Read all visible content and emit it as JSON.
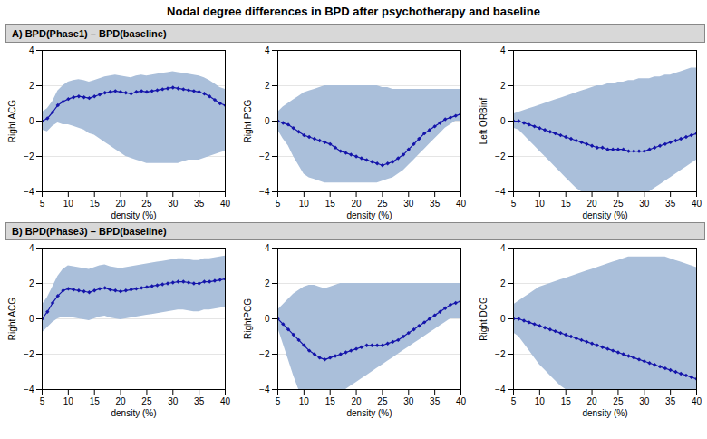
{
  "chart_data": [
    {
      "type": "line",
      "title": "Nodal degree differences in BPD after psychotherapy and baseline",
      "subtitle": "A)  BPD(Phase1) – BPD(baseline)",
      "xlabel": "density (%)",
      "ylabel": "Right ACG",
      "xlim": [
        5,
        40
      ],
      "ylim": [
        -4,
        4
      ],
      "xticks": [
        5,
        10,
        15,
        20,
        25,
        30,
        35,
        40
      ],
      "yticks": [
        -4,
        -2,
        0,
        2,
        4
      ],
      "grid": "y",
      "x": [
        5,
        6,
        7,
        8,
        9,
        10,
        11,
        12,
        13,
        14,
        15,
        16,
        17,
        18,
        19,
        20,
        21,
        22,
        23,
        24,
        25,
        26,
        27,
        28,
        29,
        30,
        31,
        32,
        33,
        34,
        35,
        36,
        37,
        38,
        39,
        40
      ],
      "series": [
        {
          "type": "area",
          "color": "#aabfda",
          "upper": [
            0.5,
            0.7,
            1.1,
            1.7,
            2.0,
            2.2,
            2.3,
            2.35,
            2.3,
            2.2,
            2.3,
            2.4,
            2.5,
            2.55,
            2.6,
            2.55,
            2.5,
            2.45,
            2.55,
            2.6,
            2.55,
            2.6,
            2.65,
            2.7,
            2.75,
            2.8,
            2.75,
            2.7,
            2.65,
            2.6,
            2.55,
            2.45,
            2.3,
            2.1,
            1.9,
            1.8
          ],
          "lower": [
            -0.5,
            -0.6,
            -0.3,
            -0.1,
            -0.2,
            -0.2,
            -0.3,
            -0.4,
            -0.5,
            -0.7,
            -0.8,
            -1.0,
            -1.2,
            -1.4,
            -1.6,
            -1.8,
            -2.0,
            -2.1,
            -2.2,
            -2.3,
            -2.4,
            -2.4,
            -2.4,
            -2.4,
            -2.4,
            -2.4,
            -2.4,
            -2.3,
            -2.2,
            -2.2,
            -2.2,
            -2.1,
            -2.0,
            -1.9,
            -1.8,
            -1.7
          ]
        },
        {
          "type": "line",
          "color": "#1414aa",
          "marker": "diamond",
          "values": [
            0.0,
            0.15,
            0.5,
            0.9,
            1.1,
            1.25,
            1.35,
            1.4,
            1.35,
            1.3,
            1.4,
            1.5,
            1.6,
            1.65,
            1.7,
            1.65,
            1.6,
            1.55,
            1.65,
            1.7,
            1.65,
            1.7,
            1.75,
            1.8,
            1.85,
            1.9,
            1.85,
            1.8,
            1.75,
            1.7,
            1.65,
            1.55,
            1.4,
            1.2,
            1.0,
            0.9
          ]
        }
      ]
    },
    {
      "type": "line",
      "xlabel": "density (%)",
      "ylabel": "Right PCG",
      "xlim": [
        5,
        40
      ],
      "ylim": [
        -4,
        4
      ],
      "xticks": [
        5,
        10,
        15,
        20,
        25,
        30,
        35,
        40
      ],
      "yticks": [
        -4,
        -2,
        0,
        2,
        4
      ],
      "grid": "y",
      "x": [
        5,
        6,
        7,
        8,
        9,
        10,
        11,
        12,
        13,
        14,
        15,
        16,
        17,
        18,
        19,
        20,
        21,
        22,
        23,
        24,
        25,
        26,
        27,
        28,
        29,
        30,
        31,
        32,
        33,
        34,
        35,
        36,
        37,
        38,
        39,
        40
      ],
      "series": [
        {
          "type": "area",
          "color": "#aabfda",
          "upper": [
            0.5,
            0.8,
            1.0,
            1.2,
            1.4,
            1.6,
            1.7,
            1.8,
            1.9,
            2.0,
            2.0,
            2.0,
            2.0,
            2.0,
            2.0,
            2.0,
            2.0,
            2.0,
            2.0,
            2.0,
            1.9,
            1.9,
            1.8,
            1.8,
            1.8,
            1.8,
            1.8,
            1.8,
            1.8,
            1.8,
            1.8,
            1.8,
            1.8,
            1.8,
            1.8,
            1.8
          ],
          "lower": [
            -0.5,
            -1.0,
            -1.4,
            -2.0,
            -2.5,
            -3.0,
            -3.2,
            -3.3,
            -3.4,
            -3.5,
            -3.5,
            -3.5,
            -3.5,
            -3.5,
            -3.5,
            -3.5,
            -3.5,
            -3.5,
            -3.5,
            -3.5,
            -3.4,
            -3.3,
            -3.2,
            -3.0,
            -2.8,
            -2.5,
            -2.2,
            -1.9,
            -1.6,
            -1.3,
            -1.0,
            -0.7,
            -0.4,
            -0.2,
            0.0,
            0.0
          ]
        },
        {
          "type": "line",
          "color": "#1414aa",
          "marker": "diamond",
          "values": [
            0.0,
            -0.1,
            -0.2,
            -0.4,
            -0.6,
            -0.8,
            -0.9,
            -1.0,
            -1.1,
            -1.2,
            -1.3,
            -1.5,
            -1.7,
            -1.8,
            -1.9,
            -2.0,
            -2.1,
            -2.2,
            -2.3,
            -2.4,
            -2.5,
            -2.4,
            -2.3,
            -2.1,
            -1.9,
            -1.6,
            -1.3,
            -1.0,
            -0.7,
            -0.5,
            -0.3,
            -0.1,
            0.1,
            0.2,
            0.3,
            0.4
          ]
        }
      ]
    },
    {
      "type": "line",
      "xlabel": "density (%)",
      "ylabel": "Left ORBinf",
      "xlim": [
        5,
        40
      ],
      "ylim": [
        -4,
        4
      ],
      "xticks": [
        5,
        10,
        15,
        20,
        25,
        30,
        35,
        40
      ],
      "yticks": [
        -4,
        -2,
        0,
        2,
        4
      ],
      "grid": "y",
      "x": [
        5,
        6,
        7,
        8,
        9,
        10,
        11,
        12,
        13,
        14,
        15,
        16,
        17,
        18,
        19,
        20,
        21,
        22,
        23,
        24,
        25,
        26,
        27,
        28,
        29,
        30,
        31,
        32,
        33,
        34,
        35,
        36,
        37,
        38,
        39,
        40
      ],
      "series": [
        {
          "type": "area",
          "color": "#aabfda",
          "upper": [
            0.4,
            0.5,
            0.6,
            0.7,
            0.8,
            0.9,
            1.0,
            1.1,
            1.2,
            1.3,
            1.4,
            1.5,
            1.6,
            1.7,
            1.8,
            1.9,
            2.0,
            2.0,
            2.1,
            2.1,
            2.2,
            2.2,
            2.3,
            2.3,
            2.4,
            2.4,
            2.4,
            2.5,
            2.5,
            2.6,
            2.6,
            2.7,
            2.8,
            2.9,
            3.0,
            3.0
          ],
          "lower": [
            -0.4,
            -0.5,
            -0.8,
            -1.1,
            -1.4,
            -1.7,
            -2.0,
            -2.3,
            -2.6,
            -2.9,
            -3.2,
            -3.5,
            -3.8,
            -4.0,
            -4.0,
            -4.0,
            -4.0,
            -4.0,
            -4.0,
            -4.0,
            -4.0,
            -4.0,
            -4.0,
            -4.0,
            -4.0,
            -4.0,
            -4.0,
            -3.8,
            -3.6,
            -3.4,
            -3.2,
            -3.0,
            -2.8,
            -2.6,
            -2.4,
            -2.2
          ]
        },
        {
          "type": "line",
          "color": "#1414aa",
          "marker": "diamond",
          "values": [
            0.0,
            0.0,
            -0.1,
            -0.2,
            -0.3,
            -0.4,
            -0.5,
            -0.6,
            -0.7,
            -0.8,
            -0.9,
            -1.0,
            -1.1,
            -1.2,
            -1.3,
            -1.4,
            -1.5,
            -1.5,
            -1.6,
            -1.6,
            -1.6,
            -1.6,
            -1.7,
            -1.7,
            -1.7,
            -1.7,
            -1.6,
            -1.5,
            -1.4,
            -1.3,
            -1.2,
            -1.1,
            -1.0,
            -0.9,
            -0.8,
            -0.7
          ]
        }
      ]
    },
    {
      "type": "line",
      "subtitle": "B)  BPD(Phase3) – BPD(baseline)",
      "xlabel": "density (%)",
      "ylabel": "Right ACG",
      "xlim": [
        5,
        40
      ],
      "ylim": [
        -4,
        4
      ],
      "xticks": [
        5,
        10,
        15,
        20,
        25,
        30,
        35,
        40
      ],
      "yticks": [
        -4,
        -2,
        0,
        2,
        4
      ],
      "grid": "y",
      "x": [
        5,
        6,
        7,
        8,
        9,
        10,
        11,
        12,
        13,
        14,
        15,
        16,
        17,
        18,
        19,
        20,
        21,
        22,
        23,
        24,
        25,
        26,
        27,
        28,
        29,
        30,
        31,
        32,
        33,
        34,
        35,
        36,
        37,
        38,
        39,
        40
      ],
      "series": [
        {
          "type": "area",
          "color": "#aabfda",
          "upper": [
            0.8,
            1.2,
            1.8,
            2.4,
            2.8,
            3.0,
            2.95,
            2.9,
            2.85,
            2.8,
            2.9,
            3.0,
            3.05,
            2.95,
            2.9,
            2.85,
            2.9,
            2.95,
            3.0,
            3.05,
            3.1,
            3.15,
            3.2,
            3.25,
            3.3,
            3.35,
            3.4,
            3.4,
            3.35,
            3.3,
            3.3,
            3.4,
            3.4,
            3.45,
            3.5,
            3.55
          ],
          "lower": [
            -0.8,
            -0.5,
            -0.2,
            0.0,
            0.1,
            0.1,
            0.05,
            0.0,
            -0.05,
            -0.1,
            0.0,
            0.1,
            0.15,
            0.05,
            0.0,
            -0.05,
            0.0,
            0.05,
            0.1,
            0.15,
            0.2,
            0.25,
            0.3,
            0.35,
            0.4,
            0.45,
            0.5,
            0.5,
            0.45,
            0.4,
            0.4,
            0.5,
            0.5,
            0.55,
            0.6,
            0.65
          ]
        },
        {
          "type": "line",
          "color": "#1414aa",
          "marker": "diamond",
          "values": [
            0.0,
            0.4,
            0.9,
            1.3,
            1.6,
            1.7,
            1.65,
            1.6,
            1.55,
            1.5,
            1.6,
            1.7,
            1.75,
            1.65,
            1.6,
            1.55,
            1.6,
            1.65,
            1.7,
            1.75,
            1.8,
            1.85,
            1.9,
            1.95,
            2.0,
            2.05,
            2.1,
            2.1,
            2.05,
            2.0,
            2.0,
            2.1,
            2.1,
            2.15,
            2.2,
            2.25
          ]
        }
      ]
    },
    {
      "type": "line",
      "xlabel": "density (%)",
      "ylabel": "RightPCG",
      "xlim": [
        5,
        40
      ],
      "ylim": [
        -4,
        4
      ],
      "xticks": [
        5,
        10,
        15,
        20,
        25,
        30,
        35,
        40
      ],
      "yticks": [
        -4,
        -2,
        0,
        2,
        4
      ],
      "grid": "y",
      "x": [
        5,
        6,
        7,
        8,
        9,
        10,
        11,
        12,
        13,
        14,
        15,
        16,
        17,
        18,
        19,
        20,
        21,
        22,
        23,
        24,
        25,
        26,
        27,
        28,
        29,
        30,
        31,
        32,
        33,
        34,
        35,
        36,
        37,
        38,
        39,
        40
      ],
      "series": [
        {
          "type": "area",
          "color": "#aabfda",
          "upper": [
            0.5,
            0.8,
            1.1,
            1.4,
            1.6,
            1.8,
            1.9,
            1.9,
            1.8,
            1.7,
            1.8,
            1.9,
            2.0,
            2.0,
            2.0,
            2.0,
            2.0,
            2.0,
            2.0,
            2.0,
            2.0,
            2.0,
            2.0,
            2.0,
            2.0,
            2.0,
            2.0,
            2.0,
            2.0,
            2.0,
            2.0,
            2.0,
            2.0,
            2.0,
            2.0,
            2.0
          ],
          "lower": [
            -0.5,
            -1.4,
            -2.3,
            -3.2,
            -4.0,
            -4.0,
            -4.0,
            -4.0,
            -4.0,
            -4.0,
            -4.0,
            -4.0,
            -4.0,
            -4.0,
            -3.8,
            -3.6,
            -3.4,
            -3.2,
            -3.0,
            -2.8,
            -2.6,
            -2.4,
            -2.2,
            -2.0,
            -1.8,
            -1.6,
            -1.4,
            -1.2,
            -1.0,
            -0.8,
            -0.6,
            -0.4,
            -0.2,
            0.0,
            0.0,
            0.0
          ]
        },
        {
          "type": "line",
          "color": "#1414aa",
          "marker": "diamond",
          "values": [
            0.0,
            -0.3,
            -0.6,
            -0.9,
            -1.2,
            -1.5,
            -1.8,
            -2.0,
            -2.2,
            -2.3,
            -2.2,
            -2.1,
            -2.0,
            -1.9,
            -1.8,
            -1.7,
            -1.6,
            -1.5,
            -1.5,
            -1.5,
            -1.5,
            -1.4,
            -1.3,
            -1.2,
            -1.0,
            -0.8,
            -0.6,
            -0.4,
            -0.2,
            0.0,
            0.2,
            0.4,
            0.6,
            0.8,
            0.9,
            1.0
          ]
        }
      ]
    },
    {
      "type": "line",
      "xlabel": "density (%)",
      "ylabel": "Right DCG",
      "xlim": [
        5,
        40
      ],
      "ylim": [
        -4,
        4
      ],
      "xticks": [
        5,
        10,
        15,
        20,
        25,
        30,
        35,
        40
      ],
      "yticks": [
        -4,
        -2,
        0,
        2,
        4
      ],
      "grid": "y",
      "x": [
        5,
        6,
        7,
        8,
        9,
        10,
        11,
        12,
        13,
        14,
        15,
        16,
        17,
        18,
        19,
        20,
        21,
        22,
        23,
        24,
        25,
        26,
        27,
        28,
        29,
        30,
        31,
        32,
        33,
        34,
        35,
        36,
        37,
        38,
        39,
        40
      ],
      "series": [
        {
          "type": "area",
          "color": "#aabfda",
          "upper": [
            0.8,
            1.0,
            1.2,
            1.4,
            1.6,
            1.8,
            1.9,
            2.0,
            2.1,
            2.2,
            2.3,
            2.4,
            2.5,
            2.6,
            2.7,
            2.8,
            2.9,
            3.0,
            3.1,
            3.2,
            3.3,
            3.4,
            3.5,
            3.5,
            3.5,
            3.5,
            3.5,
            3.5,
            3.5,
            3.5,
            3.4,
            3.3,
            3.2,
            3.1,
            3.0,
            2.9
          ],
          "lower": [
            -0.8,
            -1.0,
            -1.4,
            -1.8,
            -2.2,
            -2.6,
            -2.9,
            -3.2,
            -3.5,
            -3.8,
            -4.0,
            -4.0,
            -4.0,
            -4.0,
            -4.0,
            -4.0,
            -4.0,
            -4.0,
            -4.0,
            -4.0,
            -4.0,
            -4.0,
            -4.0,
            -4.0,
            -4.0,
            -4.0,
            -4.0,
            -4.0,
            -4.0,
            -4.0,
            -4.0,
            -4.0,
            -4.0,
            -4.0,
            -4.0,
            -4.0
          ]
        },
        {
          "type": "line",
          "color": "#1414aa",
          "marker": "diamond",
          "values": [
            0.0,
            0.0,
            -0.1,
            -0.2,
            -0.3,
            -0.4,
            -0.5,
            -0.6,
            -0.7,
            -0.8,
            -0.9,
            -1.0,
            -1.1,
            -1.2,
            -1.3,
            -1.4,
            -1.5,
            -1.6,
            -1.7,
            -1.8,
            -1.9,
            -2.0,
            -2.1,
            -2.2,
            -2.3,
            -2.4,
            -2.5,
            -2.6,
            -2.7,
            -2.8,
            -2.9,
            -3.0,
            -3.1,
            -3.2,
            -3.3,
            -3.4
          ]
        }
      ]
    }
  ]
}
